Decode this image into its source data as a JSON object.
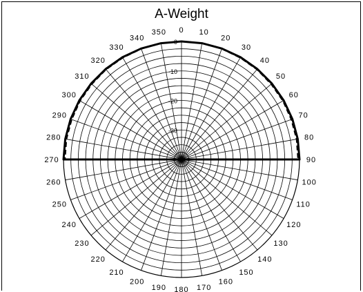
{
  "chart_data": {
    "type": "polar-line",
    "title": "A-Weight",
    "angle_ticks": [
      "0",
      "10",
      "20",
      "30",
      "40",
      "50",
      "60",
      "70",
      "80",
      "90",
      "100",
      "110",
      "120",
      "130",
      "140",
      "150",
      "160",
      "170",
      "180",
      "190",
      "200",
      "210",
      "220",
      "230",
      "240",
      "250",
      "260",
      "270",
      "280",
      "290",
      "300",
      "310",
      "320",
      "330",
      "340",
      "350"
    ],
    "radial_ticks": [
      "0",
      "-10",
      "-20",
      "-30"
    ],
    "rlim": [
      -40,
      0
    ],
    "grid": true,
    "series": [
      {
        "style": "solid",
        "angles": [
          270,
          280,
          290,
          300,
          310,
          320,
          330,
          340,
          350,
          0,
          10,
          20,
          30,
          40,
          50,
          60,
          70,
          80,
          90
        ],
        "values": [
          0,
          0,
          0,
          0,
          0,
          0,
          0,
          0,
          0,
          0,
          0,
          0,
          0,
          0,
          0,
          0,
          0,
          0,
          0
        ]
      },
      {
        "style": "dashed",
        "angles": [
          270,
          280,
          290,
          300,
          310,
          320,
          330,
          340,
          350,
          0,
          10,
          20,
          30,
          40,
          50,
          60,
          70,
          80,
          90
        ],
        "values": [
          -0.5,
          -0.4,
          -0.4,
          -0.3,
          -0.3,
          -0.2,
          -0.2,
          -0.1,
          0,
          0,
          0,
          -0.1,
          -0.2,
          -0.2,
          -0.3,
          -0.3,
          -0.4,
          -0.4,
          -0.5
        ]
      }
    ]
  }
}
